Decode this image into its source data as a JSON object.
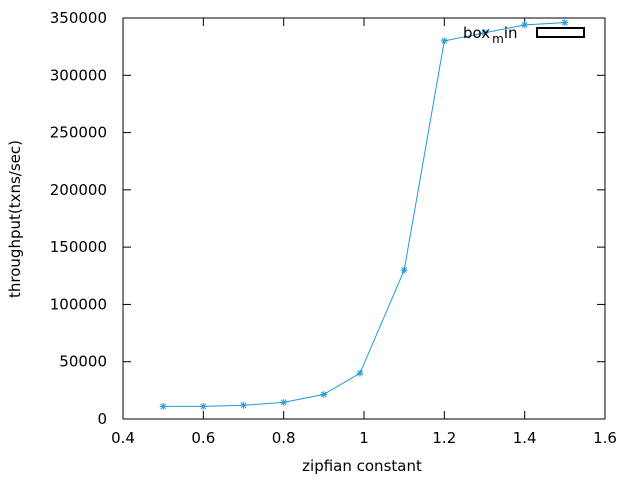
{
  "chart_data": {
    "type": "line",
    "title": "",
    "xlabel": "zipfian constant",
    "ylabel": "throughput(txns/sec)",
    "xlim": [
      0.4,
      1.6
    ],
    "ylim": [
      0,
      350000
    ],
    "x_ticks": [
      0.4,
      0.6,
      0.8,
      1,
      1.2,
      1.4,
      1.6
    ],
    "y_ticks": [
      0,
      50000,
      100000,
      150000,
      200000,
      250000,
      300000,
      350000
    ],
    "x_tick_labels": [
      "0.4",
      "0.6",
      "0.8",
      "1",
      "1.2",
      "1.4",
      "1.6"
    ],
    "y_tick_labels": [
      "0",
      "50000",
      "100000",
      "150000",
      "200000",
      "250000",
      "300000",
      "350000"
    ],
    "grid": false,
    "legend_position": "top-right",
    "legend_main": "box",
    "legend_sub": "m",
    "legend_tail": "in",
    "series": [
      {
        "name": "box_min",
        "color": "#1f9bd6",
        "marker": "asterisk",
        "x": [
          0.5,
          0.6,
          0.7,
          0.8,
          0.9,
          0.99,
          1.1,
          1.2,
          1.3,
          1.4,
          1.5
        ],
        "y": [
          11000,
          11000,
          12000,
          14500,
          21500,
          40000,
          130000,
          330000,
          337000,
          344000,
          346000
        ]
      }
    ]
  }
}
